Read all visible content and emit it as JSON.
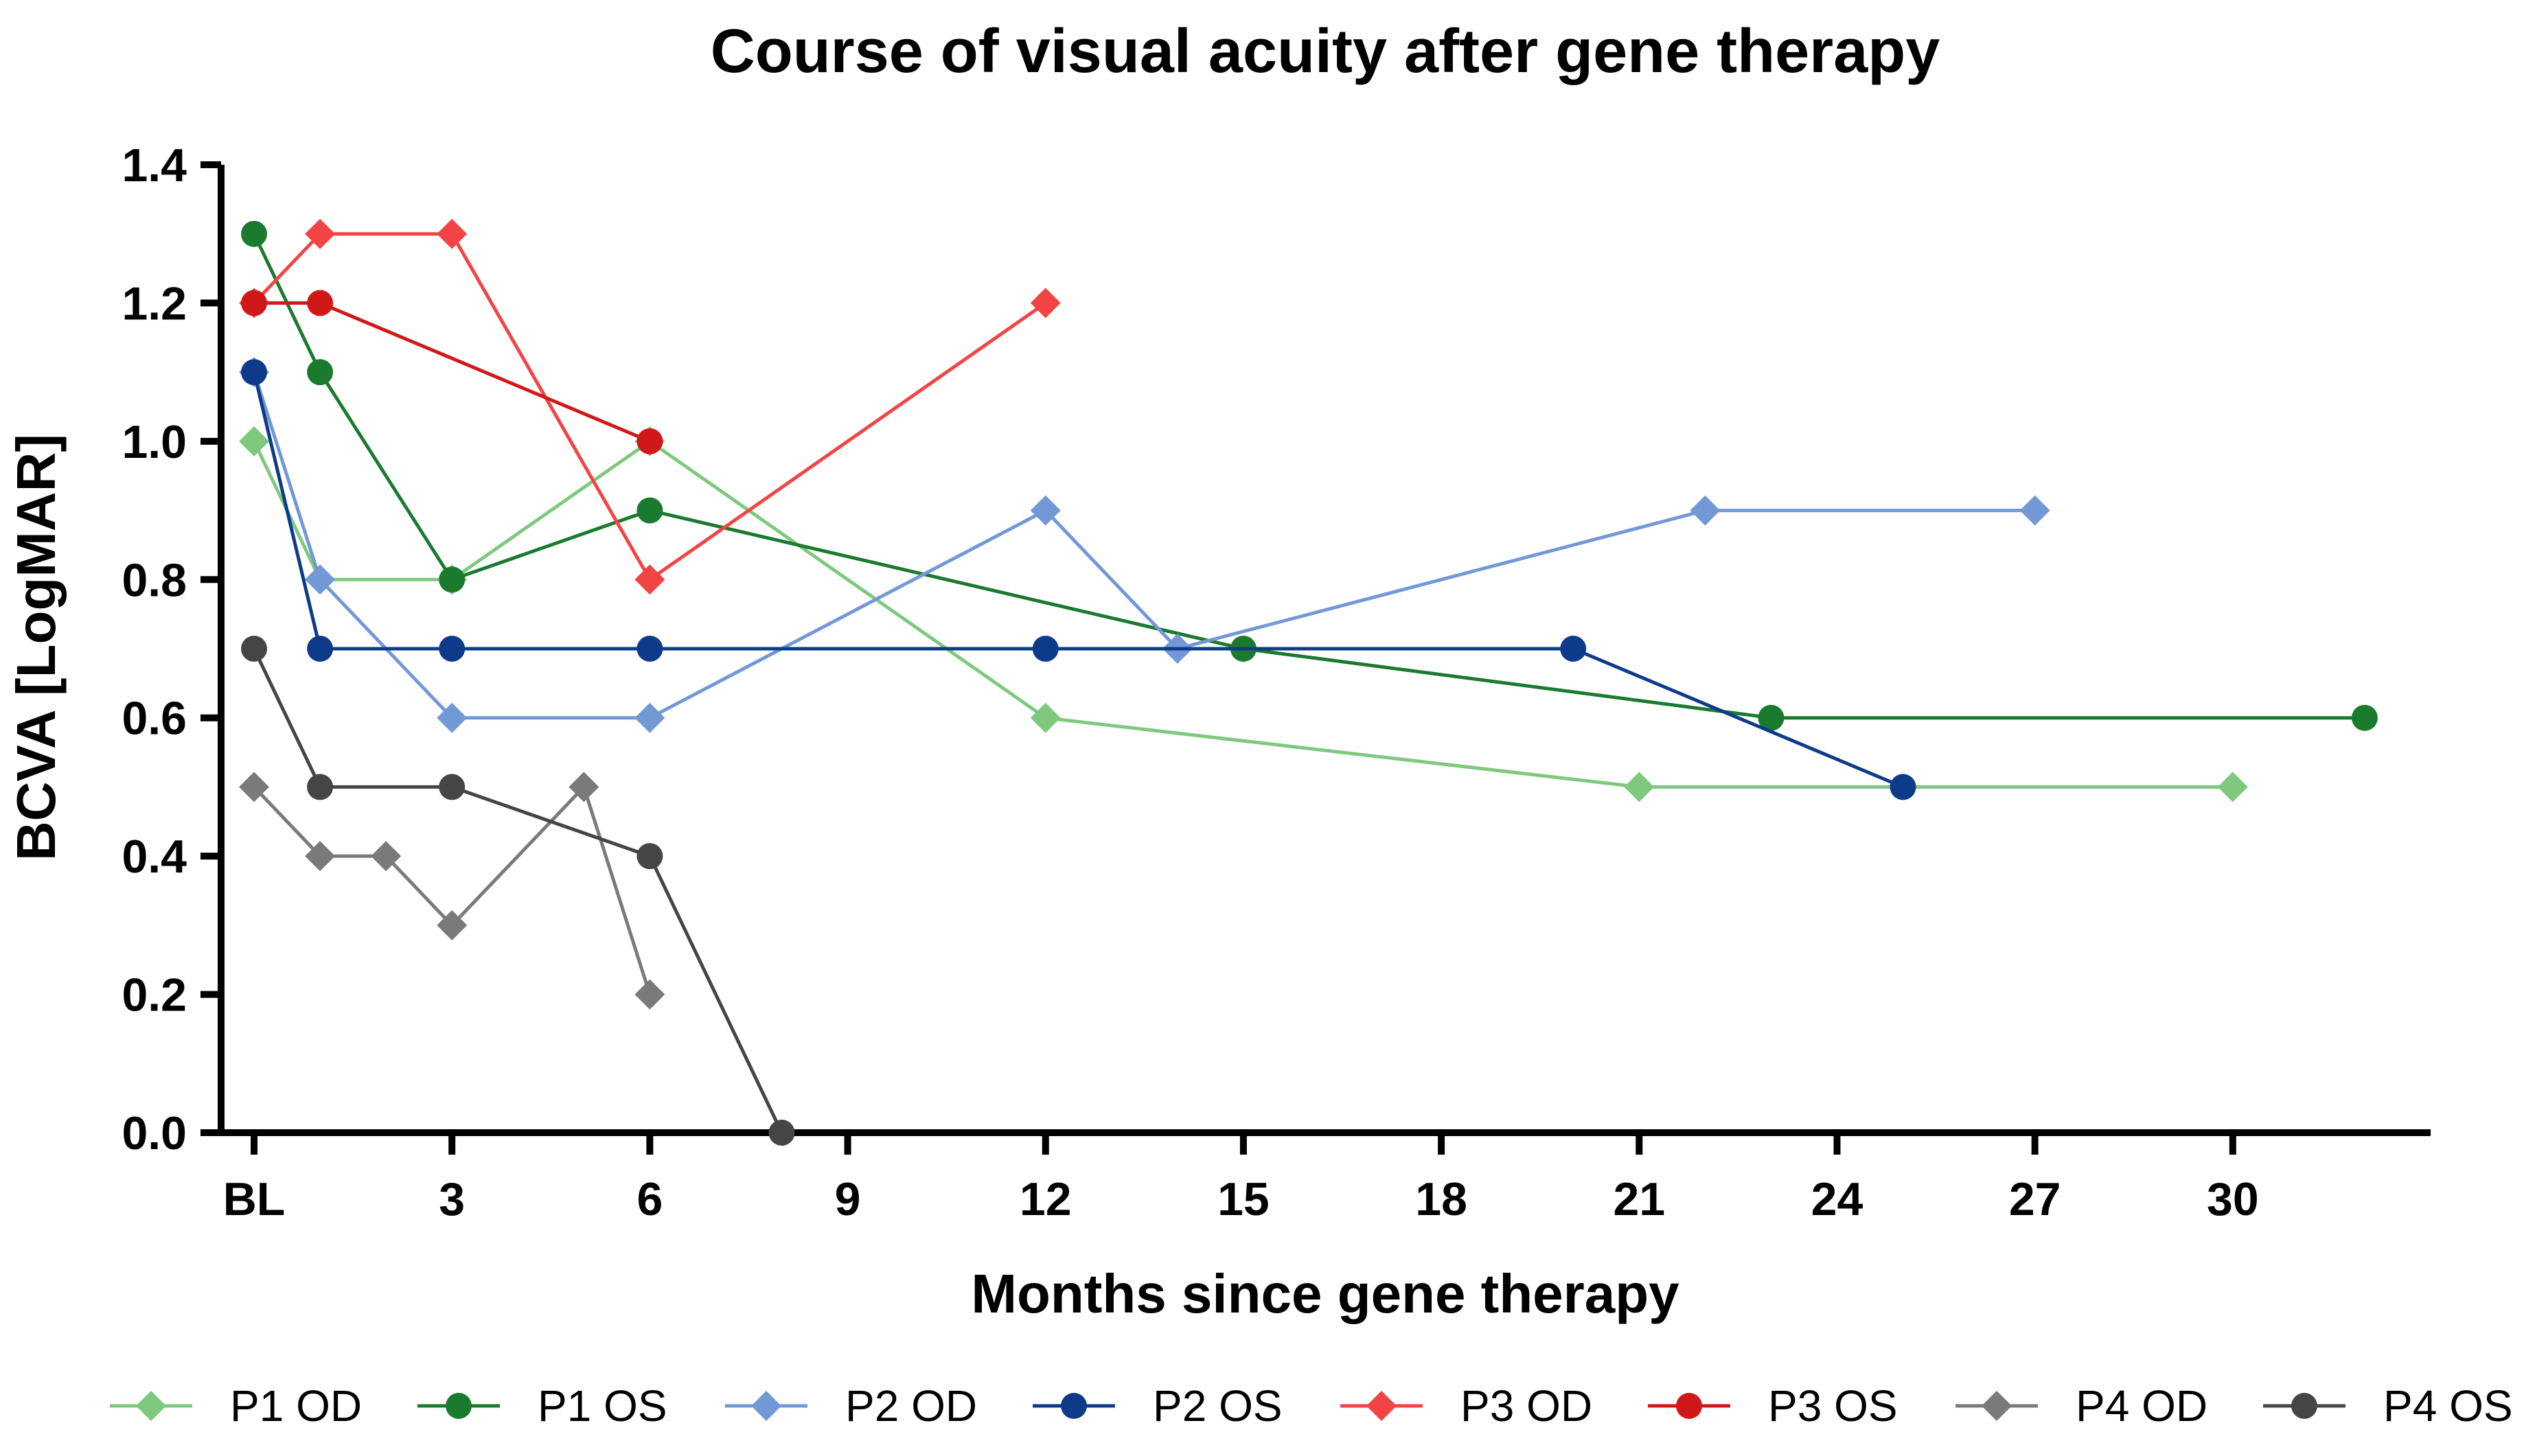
{
  "chart_data": {
    "type": "line",
    "title": "Course of visual acuity after gene therapy",
    "xlabel": "Months since gene therapy",
    "ylabel": "BCVA [LogMAR]",
    "xlim": [
      -0.5,
      33
    ],
    "ylim": [
      0,
      1.4
    ],
    "x_ticks": [
      {
        "value": 0,
        "label": "BL"
      },
      {
        "value": 3,
        "label": "3"
      },
      {
        "value": 6,
        "label": "6"
      },
      {
        "value": 9,
        "label": "9"
      },
      {
        "value": 12,
        "label": "12"
      },
      {
        "value": 15,
        "label": "15"
      },
      {
        "value": 18,
        "label": "18"
      },
      {
        "value": 21,
        "label": "21"
      },
      {
        "value": 24,
        "label": "24"
      },
      {
        "value": 27,
        "label": "27"
      },
      {
        "value": 30,
        "label": "30"
      }
    ],
    "y_ticks": [
      {
        "value": 0,
        "label": "0.0"
      },
      {
        "value": 0.2,
        "label": "0.2"
      },
      {
        "value": 0.4,
        "label": "0.4"
      },
      {
        "value": 0.6,
        "label": "0.6"
      },
      {
        "value": 0.8,
        "label": "0.8"
      },
      {
        "value": 1.0,
        "label": "1.0"
      },
      {
        "value": 1.2,
        "label": "1.2"
      },
      {
        "value": 1.4,
        "label": "1.4"
      }
    ],
    "grid": false,
    "legend_position": "bottom",
    "series": [
      {
        "name": "P1 OD",
        "color": "#7fc97f",
        "marker": "diamond",
        "x": [
          0,
          1,
          3,
          6,
          12,
          21,
          30
        ],
        "y": [
          1.0,
          0.8,
          0.8,
          1.0,
          0.6,
          0.5,
          0.5
        ]
      },
      {
        "name": "P1 OS",
        "color": "#1a7a2e",
        "marker": "circle",
        "x": [
          0,
          1,
          3,
          6,
          15,
          23,
          32
        ],
        "y": [
          1.3,
          1.1,
          0.8,
          0.9,
          0.7,
          0.6,
          0.6
        ]
      },
      {
        "name": "P2 OD",
        "color": "#7299d6",
        "marker": "diamond",
        "x": [
          0,
          1,
          3,
          6,
          12,
          14,
          22,
          27
        ],
        "y": [
          1.1,
          0.8,
          0.6,
          0.6,
          0.9,
          0.7,
          0.9,
          0.9
        ]
      },
      {
        "name": "P2 OS",
        "color": "#0d3b8a",
        "marker": "circle",
        "x": [
          0,
          1,
          3,
          6,
          12,
          20,
          25
        ],
        "y": [
          1.1,
          0.7,
          0.7,
          0.7,
          0.7,
          0.7,
          0.5
        ]
      },
      {
        "name": "P3 OD",
        "color": "#f24444",
        "marker": "diamond",
        "x": [
          0,
          1,
          3,
          6,
          12
        ],
        "y": [
          1.2,
          1.3,
          1.3,
          0.8,
          1.2
        ]
      },
      {
        "name": "P3 OS",
        "color": "#d01818",
        "marker": "circle",
        "x": [
          0,
          1,
          6
        ],
        "y": [
          1.2,
          1.2,
          1.0
        ]
      },
      {
        "name": "P4 OD",
        "color": "#7a7a7a",
        "marker": "diamond",
        "x": [
          0,
          1,
          2,
          3,
          5,
          6
        ],
        "y": [
          0.5,
          0.4,
          0.4,
          0.3,
          0.5,
          0.2
        ]
      },
      {
        "name": "P4 OS",
        "color": "#454545",
        "marker": "circle",
        "x": [
          0,
          1,
          3,
          6,
          8
        ],
        "y": [
          0.7,
          0.5,
          0.5,
          0.4,
          0.0
        ]
      }
    ]
  }
}
